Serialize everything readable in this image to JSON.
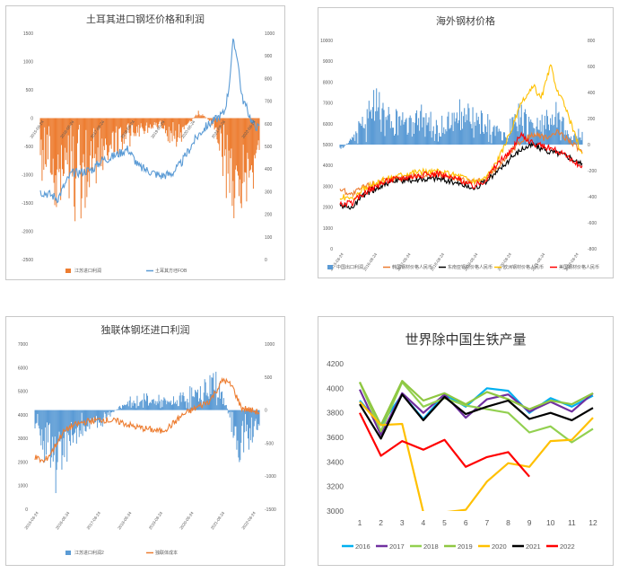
{
  "chart_data": [
    {
      "id": "turkey",
      "type": "bar",
      "title": "土耳其进口钢坯价格和利润",
      "x_ticks": [
        "2015-08-24",
        "2016-08-24",
        "2017-08-24",
        "2018-08-24",
        "2019-08-24",
        "2020-08-24",
        "2021-08-24",
        "2022-08-24"
      ],
      "y_left": {
        "ticks": [
          "1500",
          "1000",
          "500",
          "0",
          "-500",
          "-1000",
          "-1500",
          "-2000",
          "-2500"
        ],
        "range": [
          -2500,
          1500
        ]
      },
      "y_right": {
        "ticks": [
          "1000",
          "900",
          "800",
          "700",
          "600",
          "500",
          "400",
          "300",
          "200",
          "100",
          "0"
        ],
        "range": [
          0,
          1000
        ]
      },
      "series": [
        {
          "name": "江苏进口利润",
          "kind": "bar",
          "axis": "left",
          "color": "#ed7d31",
          "knots": [
            [
              0,
              -600
            ],
            [
              0.08,
              -1000
            ],
            [
              0.12,
              -800
            ],
            [
              0.18,
              -1100
            ],
            [
              0.25,
              -800
            ],
            [
              0.32,
              -450
            ],
            [
              0.4,
              -300
            ],
            [
              0.48,
              -200
            ],
            [
              0.55,
              -100
            ],
            [
              0.6,
              -350
            ],
            [
              0.66,
              -200
            ],
            [
              0.72,
              100
            ],
            [
              0.78,
              -50
            ],
            [
              0.82,
              -450
            ],
            [
              0.86,
              -900
            ],
            [
              0.9,
              -1200
            ],
            [
              0.94,
              -1000
            ],
            [
              0.97,
              -700
            ],
            [
              1,
              -500
            ]
          ]
        },
        {
          "name": "土耳其方坯FOB",
          "kind": "line",
          "axis": "right",
          "color": "#5b9bd5",
          "knots": [
            [
              0,
              300
            ],
            [
              0.04,
              290
            ],
            [
              0.08,
              270
            ],
            [
              0.1,
              310
            ],
            [
              0.14,
              380
            ],
            [
              0.2,
              390
            ],
            [
              0.24,
              400
            ],
            [
              0.28,
              440
            ],
            [
              0.32,
              450
            ],
            [
              0.36,
              470
            ],
            [
              0.4,
              490
            ],
            [
              0.45,
              410
            ],
            [
              0.5,
              390
            ],
            [
              0.55,
              370
            ],
            [
              0.6,
              380
            ],
            [
              0.64,
              420
            ],
            [
              0.7,
              520
            ],
            [
              0.73,
              560
            ],
            [
              0.76,
              590
            ],
            [
              0.8,
              620
            ],
            [
              0.84,
              650
            ],
            [
              0.86,
              750
            ],
            [
              0.88,
              960
            ],
            [
              0.9,
              900
            ],
            [
              0.92,
              720
            ],
            [
              0.95,
              650
            ],
            [
              0.97,
              600
            ],
            [
              1,
              580
            ]
          ]
        }
      ]
    },
    {
      "id": "overseas",
      "type": "line",
      "title": "海外钢材价格",
      "x_ticks": [
        "2015-08-24",
        "2016-08-24",
        "2017-08-24",
        "2018-08-24",
        "2019-08-24",
        "2020-08-24",
        "2021-08-24",
        "2022-08-24"
      ],
      "y_left": {
        "ticks": [
          "10000",
          "9000",
          "8000",
          "7000",
          "6000",
          "5000",
          "4000",
          "3000",
          "2000",
          "1000",
          "0"
        ],
        "range": [
          0,
          10000
        ]
      },
      "y_right": {
        "ticks": [
          "800",
          "600",
          "400",
          "200",
          "0",
          "-200",
          "-400",
          "-600",
          "-800"
        ],
        "range": [
          -800,
          800
        ]
      },
      "series": [
        {
          "name": "中国出口利润",
          "kind": "bar",
          "axis": "right",
          "color": "#5b9bd5",
          "knots": [
            [
              0,
              -50
            ],
            [
              0.05,
              50
            ],
            [
              0.1,
              200
            ],
            [
              0.15,
              250
            ],
            [
              0.2,
              150
            ],
            [
              0.3,
              180
            ],
            [
              0.4,
              120
            ],
            [
              0.5,
              200
            ],
            [
              0.6,
              150
            ],
            [
              0.68,
              50
            ],
            [
              0.74,
              250
            ],
            [
              0.8,
              100
            ],
            [
              0.85,
              150
            ],
            [
              0.9,
              200
            ],
            [
              0.95,
              50
            ],
            [
              1,
              80
            ]
          ]
        },
        {
          "name": "韩国钢材价格人民币",
          "kind": "line",
          "axis": "left",
          "color": "#ed7d31",
          "knots": [
            [
              0,
              2900
            ],
            [
              0.05,
              2600
            ],
            [
              0.1,
              3000
            ],
            [
              0.2,
              3300
            ],
            [
              0.3,
              3500
            ],
            [
              0.4,
              3600
            ],
            [
              0.5,
              3300
            ],
            [
              0.55,
              3200
            ],
            [
              0.6,
              3300
            ],
            [
              0.65,
              3900
            ],
            [
              0.7,
              4600
            ],
            [
              0.75,
              5200
            ],
            [
              0.8,
              5500
            ],
            [
              0.85,
              5300
            ],
            [
              0.9,
              5600
            ],
            [
              0.95,
              5200
            ],
            [
              1,
              4600
            ]
          ]
        },
        {
          "name": "东南亚钢材价格人民币",
          "kind": "line",
          "axis": "left",
          "color": "#000000",
          "knots": [
            [
              0,
              2000
            ],
            [
              0.05,
              2000
            ],
            [
              0.1,
              2600
            ],
            [
              0.2,
              3200
            ],
            [
              0.3,
              3300
            ],
            [
              0.4,
              3400
            ],
            [
              0.5,
              3100
            ],
            [
              0.55,
              2900
            ],
            [
              0.6,
              3200
            ],
            [
              0.65,
              3700
            ],
            [
              0.7,
              4300
            ],
            [
              0.75,
              4800
            ],
            [
              0.8,
              5000
            ],
            [
              0.85,
              4700
            ],
            [
              0.9,
              4600
            ],
            [
              0.95,
              4400
            ],
            [
              1,
              4000
            ]
          ]
        },
        {
          "name": "欧洲钢材价格人民币",
          "kind": "line",
          "axis": "left",
          "color": "#ffc000",
          "knots": [
            [
              0,
              2500
            ],
            [
              0.05,
              2400
            ],
            [
              0.1,
              2900
            ],
            [
              0.2,
              3400
            ],
            [
              0.3,
              3700
            ],
            [
              0.4,
              3700
            ],
            [
              0.5,
              3500
            ],
            [
              0.55,
              3200
            ],
            [
              0.6,
              3400
            ],
            [
              0.65,
              4200
            ],
            [
              0.7,
              5500
            ],
            [
              0.75,
              7000
            ],
            [
              0.8,
              7800
            ],
            [
              0.83,
              7200
            ],
            [
              0.87,
              8800
            ],
            [
              0.9,
              7500
            ],
            [
              0.93,
              6800
            ],
            [
              0.96,
              5800
            ],
            [
              1,
              4500
            ]
          ]
        },
        {
          "name": "美国钢材价格人民币",
          "kind": "line",
          "axis": "left",
          "color": "#ff0000",
          "knots": [
            [
              0,
              2100
            ],
            [
              0.05,
              2200
            ],
            [
              0.1,
              2700
            ],
            [
              0.2,
              3300
            ],
            [
              0.3,
              3500
            ],
            [
              0.4,
              3600
            ],
            [
              0.5,
              3300
            ],
            [
              0.55,
              3000
            ],
            [
              0.6,
              3300
            ],
            [
              0.65,
              4100
            ],
            [
              0.7,
              4600
            ],
            [
              0.75,
              5500
            ],
            [
              0.8,
              5000
            ],
            [
              0.85,
              4900
            ],
            [
              0.9,
              4700
            ],
            [
              0.95,
              4300
            ],
            [
              1,
              3900
            ]
          ]
        }
      ]
    },
    {
      "id": "cis",
      "type": "bar",
      "title": "独联体钢坯进口利润",
      "x_ticks": [
        "2015-08-24",
        "2016-08-24",
        "2017-08-24",
        "2018-08-24",
        "2019-08-24",
        "2020-08-24",
        "2021-08-24",
        "2022-08-24"
      ],
      "y_left": {
        "ticks": [
          "7000",
          "6000",
          "5000",
          "4000",
          "3000",
          "2000",
          "1000",
          "0"
        ],
        "range": [
          0,
          7000
        ]
      },
      "y_right": {
        "ticks": [
          "1000",
          "500",
          "0",
          "-500",
          "-1000",
          "-1500"
        ],
        "range": [
          -1500,
          1000
        ]
      },
      "series": [
        {
          "name": "江苏进口利润2",
          "kind": "bar",
          "axis": "right",
          "color": "#5b9bd5",
          "knots": [
            [
              0,
              -200
            ],
            [
              0.05,
              -500
            ],
            [
              0.1,
              -700
            ],
            [
              0.15,
              -400
            ],
            [
              0.2,
              -300
            ],
            [
              0.3,
              -150
            ],
            [
              0.4,
              100
            ],
            [
              0.5,
              150
            ],
            [
              0.6,
              100
            ],
            [
              0.7,
              200
            ],
            [
              0.75,
              250
            ],
            [
              0.8,
              400
            ],
            [
              0.85,
              100
            ],
            [
              0.9,
              -500
            ],
            [
              0.95,
              -400
            ],
            [
              1,
              -200
            ]
          ]
        },
        {
          "name": "独联体成本",
          "kind": "line",
          "axis": "left",
          "color": "#ed7d31",
          "knots": [
            [
              0,
              2200
            ],
            [
              0.04,
              2000
            ],
            [
              0.08,
              2500
            ],
            [
              0.12,
              3200
            ],
            [
              0.16,
              3500
            ],
            [
              0.22,
              3700
            ],
            [
              0.3,
              3800
            ],
            [
              0.38,
              3700
            ],
            [
              0.44,
              3500
            ],
            [
              0.5,
              3400
            ],
            [
              0.56,
              3300
            ],
            [
              0.6,
              3500
            ],
            [
              0.66,
              4000
            ],
            [
              0.72,
              4300
            ],
            [
              0.78,
              4600
            ],
            [
              0.84,
              5500
            ],
            [
              0.88,
              5200
            ],
            [
              0.92,
              4300
            ],
            [
              0.96,
              4200
            ],
            [
              1,
              4100
            ]
          ]
        }
      ]
    },
    {
      "id": "pig_iron",
      "type": "line",
      "title": "世界除中国生铁产量",
      "categories": [
        "1",
        "2",
        "3",
        "4",
        "5",
        "6",
        "7",
        "8",
        "9",
        "10",
        "11",
        "12"
      ],
      "y": {
        "ticks": [
          "4200",
          "4000",
          "3800",
          "3600",
          "3400",
          "3200",
          "3000"
        ],
        "range": [
          3000,
          4200
        ]
      },
      "series": [
        {
          "name": "2016",
          "color": "#00b0f0",
          "values": [
            3900,
            3700,
            3950,
            3750,
            3950,
            3850,
            4000,
            3980,
            3800,
            3920,
            3850,
            3940
          ]
        },
        {
          "name": "2017",
          "color": "#7030a0",
          "values": [
            3990,
            3620,
            3960,
            3800,
            3950,
            3760,
            3910,
            3950,
            3810,
            3890,
            3810,
            3960
          ]
        },
        {
          "name": "2018",
          "color": "#92d050",
          "values": [
            4050,
            3650,
            4050,
            3850,
            3920,
            3860,
            3830,
            3800,
            3640,
            3690,
            3560,
            3670
          ]
        },
        {
          "name": "2019",
          "color": "#8fc742",
          "values": [
            4050,
            3700,
            4060,
            3900,
            3960,
            3870,
            3970,
            3910,
            3830,
            3900,
            3870,
            3960
          ]
        },
        {
          "name": "2020",
          "color": "#ffc000",
          "values": [
            3890,
            3700,
            3710,
            2990,
            2990,
            3010,
            3240,
            3390,
            3360,
            3570,
            3580,
            3760
          ]
        },
        {
          "name": "2021",
          "color": "#000000",
          "values": [
            3870,
            3590,
            3950,
            3740,
            3930,
            3790,
            3850,
            3900,
            3750,
            3800,
            3740,
            3840
          ]
        },
        {
          "name": "2022",
          "color": "#ff0000",
          "values": [
            3800,
            3450,
            3570,
            3500,
            3580,
            3360,
            3440,
            3480,
            3280,
            null,
            null,
            null
          ]
        }
      ]
    }
  ]
}
